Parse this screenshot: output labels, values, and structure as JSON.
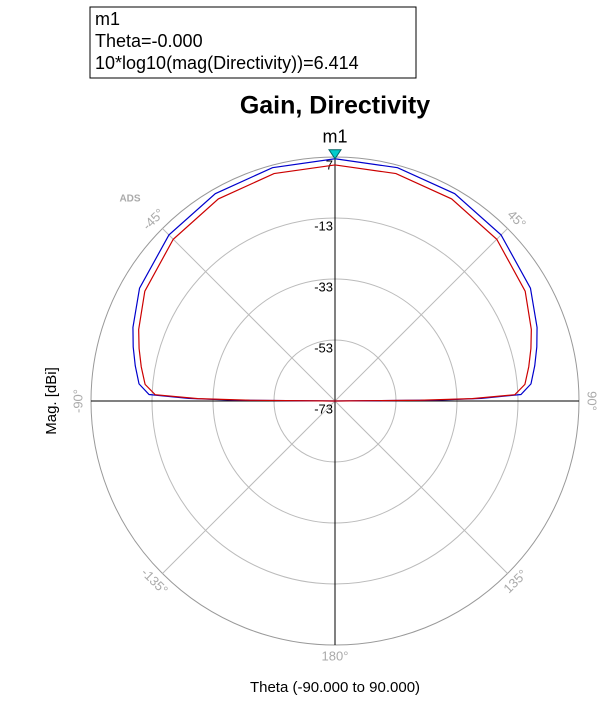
{
  "chart_data": {
    "type": "polar",
    "title": "Gain, Directivity",
    "x_label": "Theta (-90.000 to 90.000)",
    "y_label": "Mag. [dBi]",
    "watermark": "ADS",
    "theta": [
      -90,
      -89.5,
      -89,
      -88,
      -85,
      -80,
      -75,
      -70,
      -60,
      -45,
      -30,
      -15,
      0,
      15,
      30,
      45,
      60,
      70,
      75,
      80,
      85,
      88,
      89,
      89.5,
      90
    ],
    "series": [
      {
        "color": "#0000cc",
        "values": [
          -73,
          -40,
          -25,
          -12,
          -8.5,
          -6.5,
          -4.5,
          -2.5,
          1.0,
          4.0,
          5.5,
          6.2,
          6.414,
          6.2,
          5.5,
          4.0,
          1.0,
          -2.5,
          -4.5,
          -6.5,
          -8.5,
          -12,
          -25,
          -40,
          -73
        ]
      },
      {
        "color": "#cc0000",
        "values": [
          -73,
          -45,
          -28,
          -14,
          -10.5,
          -8.5,
          -6.5,
          -4.5,
          -1.0,
          2.0,
          3.5,
          4.2,
          4.4,
          4.2,
          3.5,
          2.0,
          -1.0,
          -4.5,
          -6.5,
          -8.5,
          -10.5,
          -14,
          -28,
          -45,
          -73
        ]
      }
    ],
    "rlim": [
      -73,
      7
    ],
    "rticks": [
      -73,
      -53,
      -33,
      -13,
      7
    ],
    "angle_ticks": [
      {
        "value": -135,
        "label": "-135°"
      },
      {
        "value": -90,
        "label": "-90°"
      },
      {
        "value": -45,
        "label": "-45°"
      },
      {
        "value": 45,
        "label": "45°"
      },
      {
        "value": 90,
        "label": "90°"
      },
      {
        "value": 135,
        "label": "135°"
      },
      {
        "value": 180,
        "label": "180°"
      }
    ],
    "marker": {
      "label": "m1",
      "theta": 0,
      "value": 6.414,
      "color": "#00cccc",
      "box": [
        "m1",
        "Theta=-0.000",
        "10*log10(mag(Directivity))=6.414"
      ]
    }
  }
}
